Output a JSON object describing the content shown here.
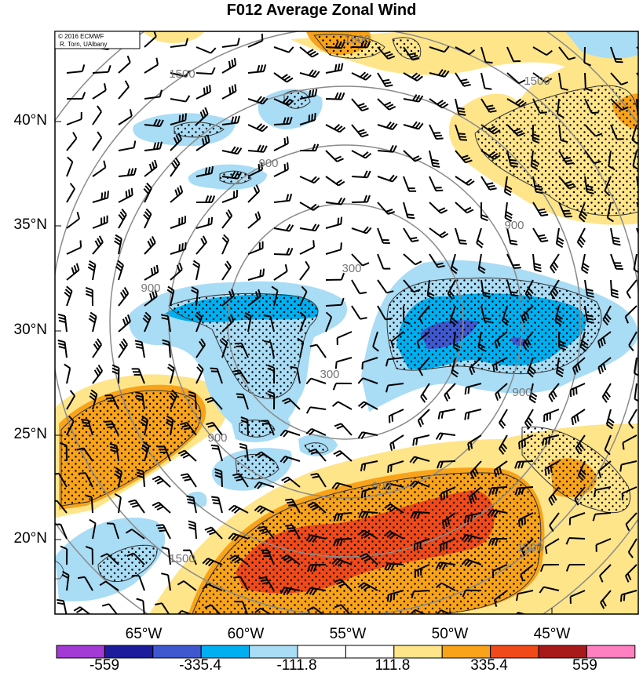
{
  "title": "F012 Average Zonal Wind",
  "credit": [
    "© 2016 ECMWF",
    "R. Torn, UAlbany"
  ],
  "lat_labels": [
    "40°N",
    "35°N",
    "30°N",
    "25°N",
    "20°N"
  ],
  "lon_labels": [
    "65°W",
    "60°W",
    "55°W",
    "50°W",
    "45°W"
  ],
  "colorbar": {
    "labels": [
      "-559",
      "-335.4",
      "-111.8",
      "111.8",
      "335.4",
      "559"
    ],
    "colors": [
      "#a33ad6",
      "#1c1c9c",
      "#3f58d0",
      "#00aff0",
      "#a9dcf5",
      "#ffffff",
      "#ffffff",
      "#ffe58a",
      "#f8a31a",
      "#f04a1a",
      "#a81a1a",
      "#ff80c0"
    ]
  },
  "contour_labels": [
    "300",
    "300",
    "900",
    "900",
    "900",
    "900",
    "900",
    "900",
    "1500",
    "1500",
    "1500",
    "1500",
    "1500"
  ],
  "field_colors": {
    "light_blue": "#a9dcf5",
    "blue": "#00aff0",
    "dark_blue": "#3f58d0",
    "yellow": "#ffe58a",
    "orange": "#f8a31a",
    "red": "#f04a1a"
  }
}
